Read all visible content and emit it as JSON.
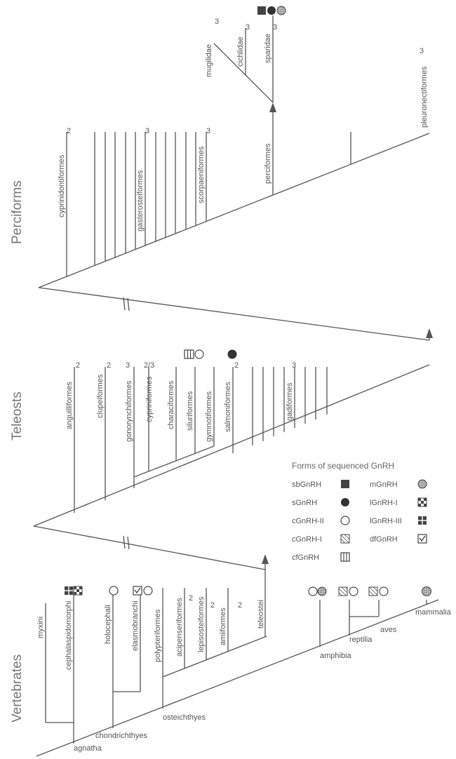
{
  "sections": {
    "perciforms": "Perciforms",
    "teleosts": "Teleosts",
    "vertebrates": "Vertebrates"
  },
  "perciforms_panel": {
    "taxa": {
      "cyprinidontiformes": "cyprinidontiformes",
      "gasterosteiformes": "gasterosteiformes",
      "scorpaeniformes": "scorpaeniformes",
      "perciformes": "perciformes",
      "pleuronectiformes": "pleuronectiformes",
      "mugilidae": "mugilidae",
      "cichlidae": "cichlidae",
      "sparidae": "sparidae"
    },
    "counts": {
      "cyprinidontiformes": "2",
      "gasterosteiformes": "3",
      "scorpaeniformes": "3",
      "pleuronectiformes": "3",
      "mugilidae": "3",
      "cichlidae": "3",
      "sparidae": "3"
    }
  },
  "teleosts_panel": {
    "taxa": {
      "anguilliformes": "anguilliformes",
      "clupeiformes": "clupeiformes",
      "gonorynchiformes": "gonorynchiformes",
      "cypriniformes": "cypriniformes",
      "characiformes": "characiformes",
      "siluriformes": "siluriformes",
      "gymnotiformes": "gymnotiformes",
      "salmoniformes": "salmoniformes",
      "gadiformes": "gadiformes"
    },
    "counts": {
      "anguilliformes": "2",
      "clupeiformes": "2",
      "gonorynchiformes": "3",
      "cypriniformes": "2/3",
      "salmoniformes": "2",
      "gadiformes": "3"
    }
  },
  "vertebrates_panel": {
    "taxa": {
      "myxini": "myxini",
      "cephalaspidomorphi": "cephalaspidomorphi",
      "holocephali": "holocephali",
      "elasmobranchi": "elasmobranchi",
      "polypteriformes": "polypteriformes",
      "acipenseriformes": "acipenseriformes",
      "lepisosteiformes": "lepisosteiformes",
      "amiiformes": "amiiformes",
      "teleostei": "teleostei",
      "agnatha": "agnatha",
      "chondrichthyes": "chondrichthyes",
      "osteichthyes": "osteichthyes",
      "amphibia": "amphibia",
      "reptilia": "reptilia",
      "aves": "aves",
      "mammalia": "mammalia"
    },
    "counts": {
      "acipenseriformes": "2",
      "lepisosteiformes": "2",
      "amiiformes": "2"
    }
  },
  "legend": {
    "title": "Forms of sequenced GnRH",
    "items": {
      "sbGnRH": "sbGnRH",
      "sGnRH": "sGnRH",
      "cGnRH_II": "cGnRH-II",
      "cGnRH_I": "cGnRH-I",
      "cfGnRH": "cfGnRH",
      "mGnRH": "mGnRH",
      "lGnRH_I": "lGnRH-I",
      "lGnRH_III": "lGnRH-III",
      "dfGnRH": "dfGnRH"
    }
  },
  "colors": {
    "line": "#555555",
    "text": "#555555",
    "mGnRH_fill": "#a8a8a8"
  }
}
